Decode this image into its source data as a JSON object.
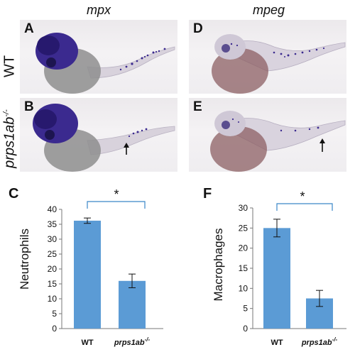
{
  "columns": [
    {
      "title": "mpx"
    },
    {
      "title": "mpeg"
    }
  ],
  "rows": [
    {
      "label": "WT"
    },
    {
      "label": "prps1ab-/-",
      "label_main": "prps1ab",
      "label_sup": "-/-"
    }
  ],
  "panels": [
    {
      "letter": "A",
      "stain": "mpx",
      "genotype": "WT"
    },
    {
      "letter": "D",
      "stain": "mpeg",
      "genotype": "WT"
    },
    {
      "letter": "B",
      "stain": "mpx",
      "genotype": "prps1ab-/-"
    },
    {
      "letter": "E",
      "stain": "mpeg",
      "genotype": "prps1ab-/-"
    }
  ],
  "colors": {
    "bar": "#5b9bd5",
    "bracket": "#3a87c8",
    "stain": "#3b2a8f",
    "yolk_mpx": "#8e8e8e",
    "yolk_mpeg": "#8c5f63"
  },
  "chart_data": [
    {
      "letter": "C",
      "type": "bar",
      "categories": [
        "WT",
        "prps1ab-/-"
      ],
      "category_main": [
        "WT",
        "prps1ab"
      ],
      "category_sup": [
        "",
        "-/-"
      ],
      "values": [
        36.2,
        16.0
      ],
      "errors": [
        0.9,
        2.3
      ],
      "ylabel": "Neutrophils",
      "ylim": [
        0,
        40
      ],
      "yticks": [
        0,
        5,
        10,
        15,
        20,
        25,
        30,
        35,
        40
      ],
      "significance": "*",
      "grid": false
    },
    {
      "letter": "F",
      "type": "bar",
      "categories": [
        "WT",
        "prps1ab-/-"
      ],
      "category_main": [
        "WT",
        "prps1ab"
      ],
      "category_sup": [
        "",
        "-/-"
      ],
      "values": [
        25.0,
        7.5
      ],
      "errors": [
        2.2,
        2.0
      ],
      "ylabel": "Macrophages",
      "ylim": [
        0,
        30
      ],
      "yticks": [
        0,
        5,
        10,
        15,
        20,
        25,
        30
      ],
      "significance": "*",
      "grid": false
    }
  ]
}
